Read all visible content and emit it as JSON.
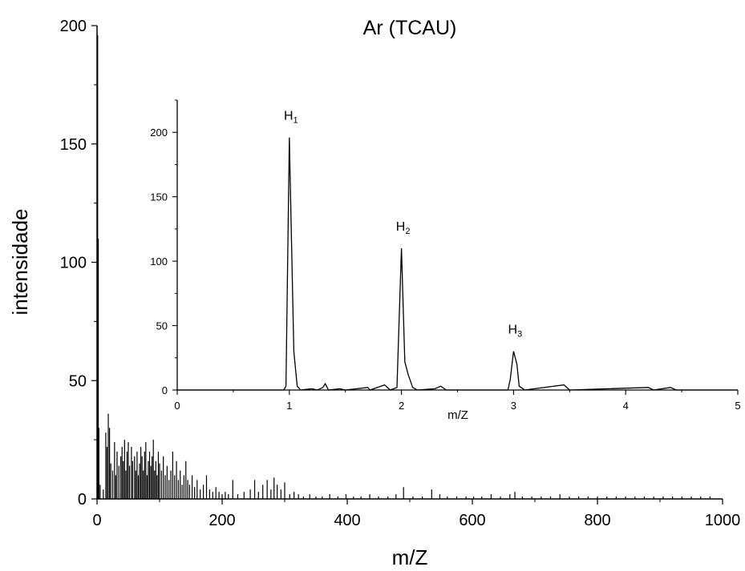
{
  "chart_data": [
    {
      "type": "line",
      "title": "Ar (TCAU)",
      "xlabel": "m/Z",
      "ylabel": "intensidade",
      "xlim": [
        0,
        1000
      ],
      "ylim": [
        0,
        200
      ],
      "xticks": [
        0,
        200,
        400,
        600,
        800,
        1000
      ],
      "yticks": [
        0,
        50,
        100,
        150,
        200
      ],
      "x_tick_labels": [
        "0",
        "200",
        "400",
        "600",
        "800",
        "1000"
      ],
      "y_tick_labels": [
        "0",
        "50",
        "100",
        "150",
        "200"
      ],
      "grid": false,
      "peaks": [
        {
          "x": 1,
          "y": 196
        },
        {
          "x": 2,
          "y": 110
        },
        {
          "x": 3,
          "y": 30
        },
        {
          "x": 5,
          "y": 6
        },
        {
          "x": 10,
          "y": 4
        },
        {
          "x": 14,
          "y": 28
        },
        {
          "x": 16,
          "y": 22
        },
        {
          "x": 18,
          "y": 36
        },
        {
          "x": 20,
          "y": 30
        },
        {
          "x": 22,
          "y": 15
        },
        {
          "x": 25,
          "y": 12
        },
        {
          "x": 28,
          "y": 24
        },
        {
          "x": 30,
          "y": 10
        },
        {
          "x": 32,
          "y": 20
        },
        {
          "x": 35,
          "y": 14
        },
        {
          "x": 38,
          "y": 18
        },
        {
          "x": 40,
          "y": 22
        },
        {
          "x": 42,
          "y": 16
        },
        {
          "x": 44,
          "y": 25
        },
        {
          "x": 46,
          "y": 12
        },
        {
          "x": 48,
          "y": 20
        },
        {
          "x": 50,
          "y": 24
        },
        {
          "x": 52,
          "y": 14
        },
        {
          "x": 55,
          "y": 22
        },
        {
          "x": 57,
          "y": 16
        },
        {
          "x": 60,
          "y": 18
        },
        {
          "x": 62,
          "y": 12
        },
        {
          "x": 64,
          "y": 20
        },
        {
          "x": 66,
          "y": 10
        },
        {
          "x": 68,
          "y": 15
        },
        {
          "x": 70,
          "y": 22
        },
        {
          "x": 72,
          "y": 18
        },
        {
          "x": 74,
          "y": 12
        },
        {
          "x": 76,
          "y": 20
        },
        {
          "x": 78,
          "y": 24
        },
        {
          "x": 80,
          "y": 10
        },
        {
          "x": 82,
          "y": 16
        },
        {
          "x": 84,
          "y": 20
        },
        {
          "x": 86,
          "y": 14
        },
        {
          "x": 88,
          "y": 18
        },
        {
          "x": 90,
          "y": 25
        },
        {
          "x": 92,
          "y": 12
        },
        {
          "x": 94,
          "y": 16
        },
        {
          "x": 96,
          "y": 10
        },
        {
          "x": 98,
          "y": 20
        },
        {
          "x": 100,
          "y": 15
        },
        {
          "x": 103,
          "y": 12
        },
        {
          "x": 106,
          "y": 18
        },
        {
          "x": 109,
          "y": 10
        },
        {
          "x": 112,
          "y": 14
        },
        {
          "x": 115,
          "y": 8
        },
        {
          "x": 118,
          "y": 12
        },
        {
          "x": 121,
          "y": 20
        },
        {
          "x": 124,
          "y": 10
        },
        {
          "x": 127,
          "y": 16
        },
        {
          "x": 130,
          "y": 8
        },
        {
          "x": 133,
          "y": 12
        },
        {
          "x": 136,
          "y": 6
        },
        {
          "x": 139,
          "y": 10
        },
        {
          "x": 142,
          "y": 16
        },
        {
          "x": 145,
          "y": 8
        },
        {
          "x": 148,
          "y": 6
        },
        {
          "x": 152,
          "y": 10
        },
        {
          "x": 156,
          "y": 5
        },
        {
          "x": 160,
          "y": 8
        },
        {
          "x": 165,
          "y": 4
        },
        {
          "x": 170,
          "y": 6
        },
        {
          "x": 175,
          "y": 10
        },
        {
          "x": 180,
          "y": 4
        },
        {
          "x": 185,
          "y": 3
        },
        {
          "x": 190,
          "y": 5
        },
        {
          "x": 195,
          "y": 3
        },
        {
          "x": 200,
          "y": 2
        },
        {
          "x": 205,
          "y": 3
        },
        {
          "x": 210,
          "y": 2
        },
        {
          "x": 217,
          "y": 8
        },
        {
          "x": 225,
          "y": 2
        },
        {
          "x": 235,
          "y": 3
        },
        {
          "x": 245,
          "y": 4
        },
        {
          "x": 252,
          "y": 8
        },
        {
          "x": 258,
          "y": 3
        },
        {
          "x": 265,
          "y": 6
        },
        {
          "x": 272,
          "y": 8
        },
        {
          "x": 278,
          "y": 4
        },
        {
          "x": 283,
          "y": 9
        },
        {
          "x": 288,
          "y": 6
        },
        {
          "x": 294,
          "y": 4
        },
        {
          "x": 300,
          "y": 7
        },
        {
          "x": 308,
          "y": 2
        },
        {
          "x": 315,
          "y": 3
        },
        {
          "x": 322,
          "y": 2
        },
        {
          "x": 330,
          "y": 1
        },
        {
          "x": 340,
          "y": 2
        },
        {
          "x": 350,
          "y": 1
        },
        {
          "x": 360,
          "y": 1
        },
        {
          "x": 372,
          "y": 2
        },
        {
          "x": 385,
          "y": 1
        },
        {
          "x": 398,
          "y": 2
        },
        {
          "x": 410,
          "y": 1
        },
        {
          "x": 422,
          "y": 1
        },
        {
          "x": 436,
          "y": 2
        },
        {
          "x": 450,
          "y": 1
        },
        {
          "x": 465,
          "y": 1
        },
        {
          "x": 478,
          "y": 2
        },
        {
          "x": 490,
          "y": 5
        },
        {
          "x": 505,
          "y": 1
        },
        {
          "x": 520,
          "y": 1
        },
        {
          "x": 535,
          "y": 4
        },
        {
          "x": 548,
          "y": 2
        },
        {
          "x": 560,
          "y": 1
        },
        {
          "x": 575,
          "y": 1
        },
        {
          "x": 590,
          "y": 1
        },
        {
          "x": 602,
          "y": 1
        },
        {
          "x": 615,
          "y": 1
        },
        {
          "x": 630,
          "y": 2
        },
        {
          "x": 645,
          "y": 1
        },
        {
          "x": 660,
          "y": 2
        },
        {
          "x": 668,
          "y": 3
        },
        {
          "x": 680,
          "y": 1
        },
        {
          "x": 695,
          "y": 1
        },
        {
          "x": 710,
          "y": 1
        },
        {
          "x": 725,
          "y": 1
        },
        {
          "x": 740,
          "y": 2
        },
        {
          "x": 755,
          "y": 1
        },
        {
          "x": 770,
          "y": 1
        },
        {
          "x": 785,
          "y": 1
        },
        {
          "x": 800,
          "y": 1
        },
        {
          "x": 815,
          "y": 1
        },
        {
          "x": 830,
          "y": 1
        },
        {
          "x": 845,
          "y": 1
        },
        {
          "x": 860,
          "y": 1
        },
        {
          "x": 875,
          "y": 1
        },
        {
          "x": 890,
          "y": 1
        },
        {
          "x": 905,
          "y": 1
        },
        {
          "x": 920,
          "y": 1
        },
        {
          "x": 935,
          "y": 1
        },
        {
          "x": 950,
          "y": 1
        },
        {
          "x": 965,
          "y": 1
        },
        {
          "x": 980,
          "y": 1
        }
      ]
    },
    {
      "type": "line",
      "title": "",
      "xlabel": "m/Z",
      "ylabel": "",
      "xlim": [
        0,
        5
      ],
      "ylim": [
        0,
        225
      ],
      "xticks": [
        0,
        1,
        2,
        3,
        4,
        5
      ],
      "yticks": [
        0,
        50,
        100,
        150,
        200
      ],
      "x_tick_labels": [
        "0",
        "1",
        "2",
        "3",
        "4",
        "5"
      ],
      "y_tick_labels": [
        "0",
        "50",
        "100",
        "150",
        "200"
      ],
      "grid": false,
      "annotations": [
        {
          "label": "H",
          "sub": "1",
          "x": 1.0,
          "y": 196
        },
        {
          "label": "H",
          "sub": "2",
          "x": 2.0,
          "y": 110
        },
        {
          "label": "H",
          "sub": "3",
          "x": 3.0,
          "y": 30
        }
      ],
      "points": [
        {
          "x": 0.0,
          "y": 0
        },
        {
          "x": 0.95,
          "y": 0
        },
        {
          "x": 0.97,
          "y": 3
        },
        {
          "x": 1.0,
          "y": 196
        },
        {
          "x": 1.04,
          "y": 30
        },
        {
          "x": 1.07,
          "y": 3
        },
        {
          "x": 1.1,
          "y": 0
        },
        {
          "x": 1.2,
          "y": 1
        },
        {
          "x": 1.25,
          "y": 0
        },
        {
          "x": 1.3,
          "y": 2
        },
        {
          "x": 1.32,
          "y": 5
        },
        {
          "x": 1.35,
          "y": 0
        },
        {
          "x": 1.45,
          "y": 1
        },
        {
          "x": 1.5,
          "y": 0
        },
        {
          "x": 1.7,
          "y": 2
        },
        {
          "x": 1.72,
          "y": 0
        },
        {
          "x": 1.85,
          "y": 4
        },
        {
          "x": 1.9,
          "y": 0
        },
        {
          "x": 1.96,
          "y": 2
        },
        {
          "x": 2.0,
          "y": 110
        },
        {
          "x": 2.03,
          "y": 22
        },
        {
          "x": 2.06,
          "y": 12
        },
        {
          "x": 2.1,
          "y": 2
        },
        {
          "x": 2.14,
          "y": 0
        },
        {
          "x": 2.3,
          "y": 1
        },
        {
          "x": 2.35,
          "y": 3
        },
        {
          "x": 2.4,
          "y": 0
        },
        {
          "x": 2.95,
          "y": 0
        },
        {
          "x": 2.97,
          "y": 8
        },
        {
          "x": 3.0,
          "y": 30
        },
        {
          "x": 3.03,
          "y": 20
        },
        {
          "x": 3.05,
          "y": 3
        },
        {
          "x": 3.1,
          "y": 0
        },
        {
          "x": 3.45,
          "y": 4
        },
        {
          "x": 3.5,
          "y": 0
        },
        {
          "x": 4.2,
          "y": 2
        },
        {
          "x": 4.25,
          "y": 0
        },
        {
          "x": 4.4,
          "y": 2
        },
        {
          "x": 4.45,
          "y": 0
        },
        {
          "x": 5.0,
          "y": 0
        }
      ]
    }
  ]
}
